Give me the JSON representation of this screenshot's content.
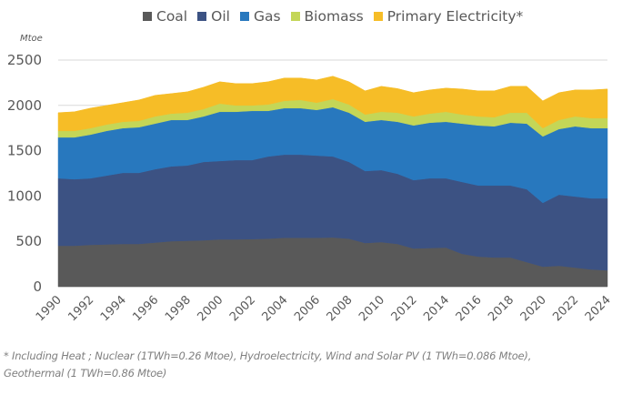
{
  "chart_data": {
    "type": "area",
    "stacked": true,
    "title": "",
    "xlabel": "",
    "ylabel": "Mtoe",
    "ylim": [
      0,
      2500
    ],
    "yticks": [
      0,
      500,
      1000,
      1500,
      2000,
      2500
    ],
    "xtick_labels": [
      "1990",
      "1992",
      "1994",
      "1996",
      "1998",
      "2000",
      "2002",
      "2004",
      "2006",
      "2008",
      "2010",
      "2012",
      "2014",
      "2016",
      "2018",
      "2020",
      "2022",
      "2024"
    ],
    "grid": true,
    "legend_position": "top",
    "x": [
      1990,
      1991,
      1992,
      1993,
      1994,
      1995,
      1996,
      1997,
      1998,
      1999,
      2000,
      2001,
      2002,
      2003,
      2004,
      2005,
      2006,
      2007,
      2008,
      2009,
      2010,
      2011,
      2012,
      2013,
      2014,
      2015,
      2016,
      2017,
      2018,
      2019,
      2020,
      2021,
      2022,
      2023,
      2024
    ],
    "series": [
      {
        "name": "Coal",
        "color": "#595959",
        "values": [
          452,
          452,
          462,
          467,
          472,
          472,
          487,
          502,
          507,
          512,
          522,
          522,
          525,
          530,
          540,
          540,
          540,
          543,
          530,
          482,
          492,
          472,
          422,
          427,
          432,
          362,
          332,
          322,
          322,
          271,
          221,
          231,
          211,
          191,
          181
        ]
      },
      {
        "name": "Oil",
        "color": "#3c5283",
        "values": [
          744,
          734,
          734,
          759,
          784,
          784,
          809,
          825,
          830,
          865,
          865,
          875,
          872,
          907,
          917,
          917,
          907,
          894,
          847,
          794,
          794,
          774,
          754,
          769,
          764,
          794,
          784,
          794,
          794,
          804,
          704,
          784,
          784,
          784,
          794
        ]
      },
      {
        "name": "Gas",
        "color": "#2878be",
        "values": [
          452,
          462,
          482,
          493,
          493,
          503,
          503,
          512,
          502,
          502,
          543,
          533,
          543,
          503,
          513,
          513,
          503,
          543,
          543,
          543,
          553,
          573,
          603,
          613,
          623,
          643,
          663,
          653,
          693,
          724,
          733,
          724,
          774,
          774,
          774
        ]
      },
      {
        "name": "Biomass",
        "color": "#c4d657",
        "values": [
          71,
          71,
          71,
          70,
          70,
          70,
          80,
          71,
          81,
          81,
          90,
          70,
          60,
          70,
          80,
          90,
          80,
          90,
          90,
          81,
          91,
          101,
          100,
          101,
          111,
          101,
          100,
          100,
          111,
          121,
          91,
          100,
          110,
          110,
          110
        ]
      },
      {
        "name": "Primary Electricity*",
        "color": "#f6bd27",
        "values": [
          201,
          211,
          221,
          211,
          211,
          231,
          232,
          221,
          231,
          241,
          241,
          241,
          241,
          251,
          252,
          242,
          251,
          252,
          251,
          261,
          281,
          266,
          262,
          261,
          261,
          281,
          282,
          292,
          291,
          291,
          301,
          302,
          292,
          312,
          322
        ]
      }
    ],
    "unit_label": "Mtoe",
    "footnote_line1": "* Including Heat ; Nuclear (1TWh=0.26 Mtoe), Hydroelectricity, Wind and Solar PV (1 TWh=0.086 Mtoe),",
    "footnote_line2": "Geothermal (1 TWh=0.86 Mtoe)"
  }
}
